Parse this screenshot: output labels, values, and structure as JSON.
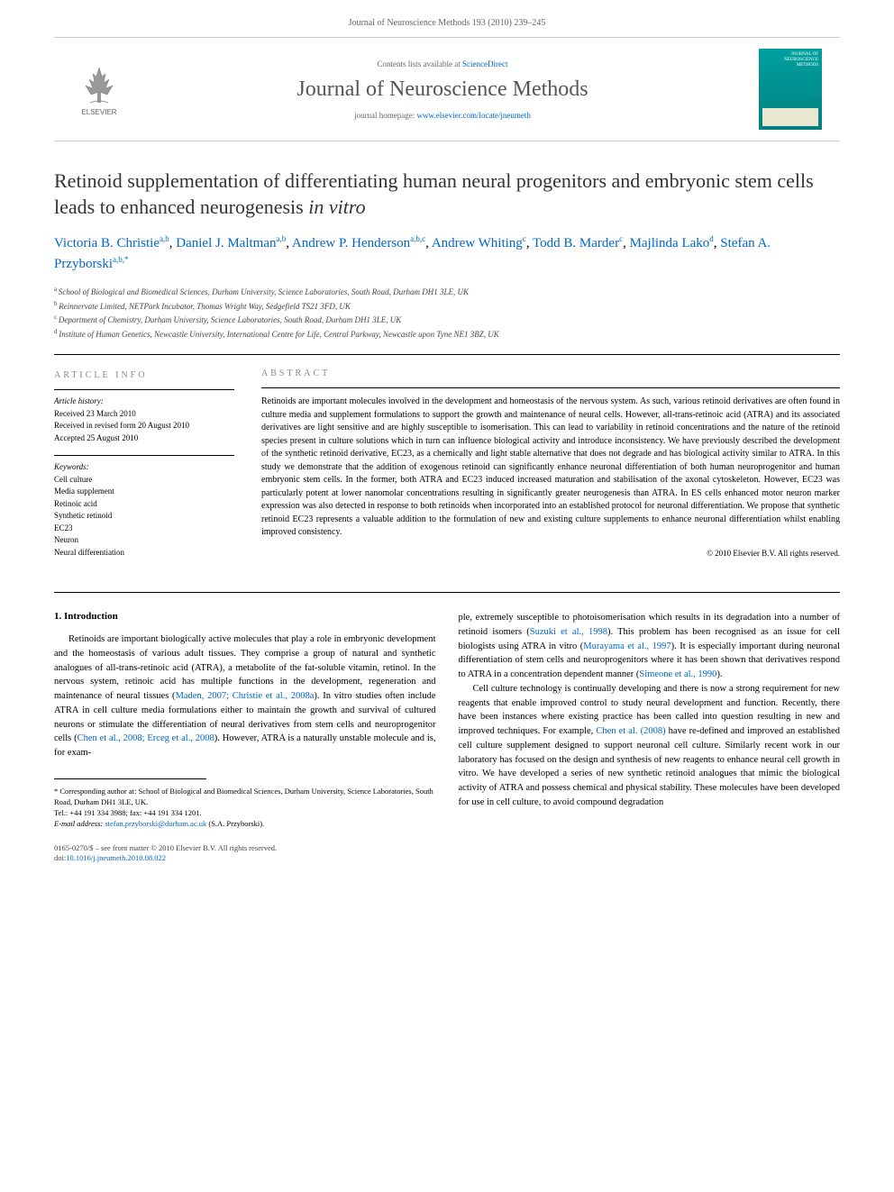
{
  "header": {
    "citation": "Journal of Neuroscience Methods 193 (2010) 239–245"
  },
  "masthead": {
    "elsevier_label": "ELSEVIER",
    "contents_prefix": "Contents lists available at ",
    "contents_link": "ScienceDirect",
    "journal_name": "Journal of Neuroscience Methods",
    "homepage_prefix": "journal homepage: ",
    "homepage_link": "www.elsevier.com/locate/jneumeth",
    "cover_line1": "JOURNAL OF",
    "cover_line2": "NEUROSCIENCE",
    "cover_line3": "METHODS"
  },
  "title": "Retinoid supplementation of differentiating human neural progenitors and embryonic stem cells leads to enhanced neurogenesis in vitro",
  "title_italic_suffix": "in vitro",
  "authors": [
    {
      "name": "Victoria B. Christie",
      "sup": "a,b"
    },
    {
      "name": "Daniel J. Maltman",
      "sup": "a,b"
    },
    {
      "name": "Andrew P. Henderson",
      "sup": "a,b,c"
    },
    {
      "name": "Andrew Whiting",
      "sup": "c"
    },
    {
      "name": "Todd B. Marder",
      "sup": "c"
    },
    {
      "name": "Majlinda Lako",
      "sup": "d"
    },
    {
      "name": "Stefan A. Przyborski",
      "sup": "a,b,*"
    }
  ],
  "affiliations": [
    {
      "sup": "a",
      "text": "School of Biological and Biomedical Sciences, Durham University, Science Laboratories, South Road, Durham DH1 3LE, UK"
    },
    {
      "sup": "b",
      "text": "Reinnervate Limited, NETPark Incubator, Thomas Wright Way, Sedgefield TS21 3FD, UK"
    },
    {
      "sup": "c",
      "text": "Department of Chemistry, Durham University, Science Laboratories, South Road, Durham DH1 3LE, UK"
    },
    {
      "sup": "d",
      "text": "Institute of Human Genetics, Newcastle University, International Centre for Life, Central Parkway, Newcastle upon Tyne NE1 3BZ, UK"
    }
  ],
  "article_info": {
    "heading": "ARTICLE INFO",
    "history_heading": "Article history:",
    "history": [
      "Received 23 March 2010",
      "Received in revised form 20 August 2010",
      "Accepted 25 August 2010"
    ],
    "keywords_heading": "Keywords:",
    "keywords": [
      "Cell culture",
      "Media supplement",
      "Retinoic acid",
      "Synthetic retinoid",
      "EC23",
      "Neuron",
      "Neural differentiation"
    ]
  },
  "abstract": {
    "heading": "ABSTRACT",
    "text": "Retinoids are important molecules involved in the development and homeostasis of the nervous system. As such, various retinoid derivatives are often found in culture media and supplement formulations to support the growth and maintenance of neural cells. However, all-trans-retinoic acid (ATRA) and its associated derivatives are light sensitive and are highly susceptible to isomerisation. This can lead to variability in retinoid concentrations and the nature of the retinoid species present in culture solutions which in turn can influence biological activity and introduce inconsistency. We have previously described the development of the synthetic retinoid derivative, EC23, as a chemically and light stable alternative that does not degrade and has biological activity similar to ATRA. In this study we demonstrate that the addition of exogenous retinoid can significantly enhance neuronal differentiation of both human neuroprogenitor and human embryonic stem cells. In the former, both ATRA and EC23 induced increased maturation and stabilisation of the axonal cytoskeleton. However, EC23 was particularly potent at lower nanomolar concentrations resulting in significantly greater neurogenesis than ATRA. In ES cells enhanced motor neuron marker expression was also detected in response to both retinoids when incorporated into an established protocol for neuronal differentiation. We propose that synthetic retinoid EC23 represents a valuable addition to the formulation of new and existing culture supplements to enhance neuronal differentiation whilst enabling improved consistency.",
    "copyright": "© 2010 Elsevier B.V. All rights reserved."
  },
  "body": {
    "section_heading": "1. Introduction",
    "col1_p1_pre": "Retinoids are important biologically active molecules that play a role in embryonic development and the homeostasis of various adult tissues. They comprise a group of natural and synthetic analogues of all-trans-retinoic acid (ATRA), a metabolite of the fat-soluble vitamin, retinol. In the nervous system, retinoic acid has multiple functions in the development, regeneration and maintenance of neural tissues (",
    "col1_p1_link1": "Maden, 2007; Christie et al., 2008a",
    "col1_p1_mid1": "). In vitro studies often include ATRA in cell culture media formulations either to maintain the growth and survival of cultured neurons or stimulate the differentiation of neural derivatives from stem cells and neuroprogenitor cells (",
    "col1_p1_link2": "Chen et al., 2008; Erceg et al., 2008",
    "col1_p1_post": "). However, ATRA is a naturally unstable molecule and is, for exam-",
    "col2_p1_pre": "ple, extremely susceptible to photoisomerisation which results in its degradation into a number of retinoid isomers (",
    "col2_p1_link1": "Suzuki et al., 1998",
    "col2_p1_mid1": "). This problem has been recognised as an issue for cell biologists using ATRA in vitro (",
    "col2_p1_link2": "Murayama et al., 1997",
    "col2_p1_mid2": "). It is especially important during neuronal differentiation of stem cells and neuroprogenitors where it has been shown that derivatives respond to ATRA in a concentration dependent manner (",
    "col2_p1_link3": "Simeone et al., 1990",
    "col2_p1_post": ").",
    "col2_p2_pre": "Cell culture technology is continually developing and there is now a strong requirement for new reagents that enable improved control to study neural development and function. Recently, there have been instances where existing practice has been called into question resulting in new and improved techniques. For example, ",
    "col2_p2_link1": "Chen et al. (2008)",
    "col2_p2_post": " have re-defined and improved an established cell culture supplement designed to support neuronal cell culture. Similarly recent work in our laboratory has focused on the design and synthesis of new reagents to enhance neural cell growth in vitro. We have developed a series of new synthetic retinoid analogues that mimic the biological activity of ATRA and possess chemical and physical stability. These molecules have been developed for use in cell culture, to avoid compound degradation"
  },
  "footnote": {
    "corr_label": "* Corresponding author at: School of Biological and Biomedical Sciences, Durham University, Science Laboratories, South Road, Durham DH1 3LE, UK.",
    "tel": "Tel.: +44 191 334 3988; fax: +44 191 334 1201.",
    "email_label": "E-mail address: ",
    "email": "stefan.przyborski@durham.ac.uk",
    "email_suffix": " (S.A. Przyborski)."
  },
  "footer": {
    "line1": "0165-0270/$ – see front matter © 2010 Elsevier B.V. All rights reserved.",
    "doi_prefix": "doi:",
    "doi": "10.1016/j.jneumeth.2010.08.022"
  },
  "colors": {
    "link": "#0066cc",
    "text": "#000000",
    "muted": "#666666",
    "journal_cover_top": "#00a0a0",
    "journal_cover_bottom": "#008080"
  }
}
